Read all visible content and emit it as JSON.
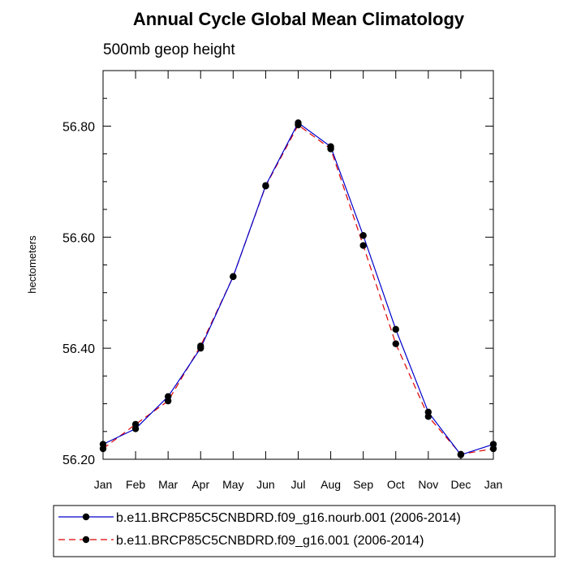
{
  "chart_data": {
    "type": "line",
    "title": "Annual Cycle Global Mean Climatology",
    "subtitle": "500mb geop height",
    "xlabel": "",
    "ylabel": "hectometers",
    "categories": [
      "Jan",
      "Feb",
      "Mar",
      "Apr",
      "May",
      "Jun",
      "Jul",
      "Aug",
      "Sep",
      "Oct",
      "Nov",
      "Dec",
      "Jan"
    ],
    "ylim": [
      56.2,
      56.9
    ],
    "yticks": [
      56.2,
      56.4,
      56.6,
      56.8
    ],
    "ytick_labels": [
      "56.20",
      "56.40",
      "56.60",
      "56.80"
    ],
    "series": [
      {
        "name": "b.e11.BRCP85C5CNBDRD.f09_g16.nourb.001 (2006-2014)",
        "color": "#0000cc",
        "dash": "solid",
        "values": [
          56.227,
          56.255,
          56.313,
          56.4,
          56.529,
          56.693,
          56.806,
          56.763,
          56.603,
          56.434,
          56.285,
          56.208,
          56.227
        ]
      },
      {
        "name": "b.e11.BRCP85C5CNBDRD.f09_g16.001 (2006-2014)",
        "color": "#dd0000",
        "dash": "dashed",
        "values": [
          56.219,
          56.263,
          56.305,
          56.404,
          56.529,
          56.692,
          56.802,
          56.759,
          56.585,
          56.408,
          56.277,
          56.209,
          56.219
        ]
      }
    ],
    "legend_position": "bottom"
  }
}
